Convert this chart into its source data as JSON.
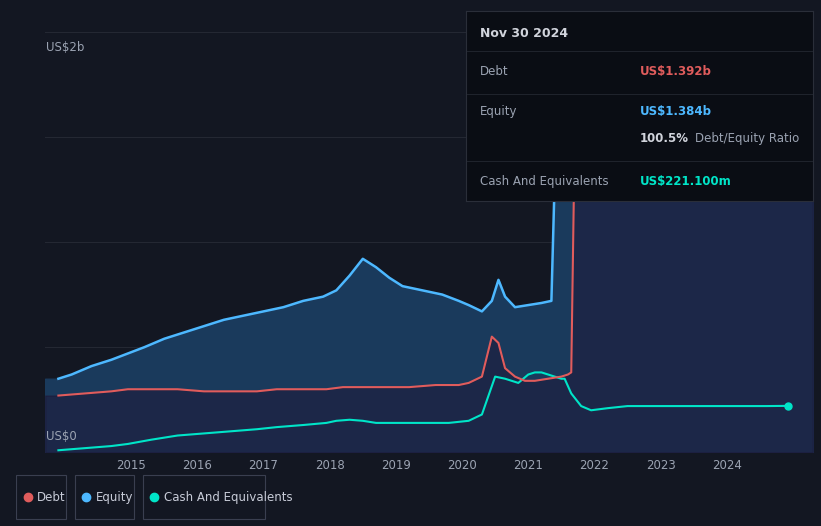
{
  "bg_color": "#131722",
  "plot_bg_color": "#131722",
  "grid_color": "#2a2e39",
  "title_box": {
    "date": "Nov 30 2024",
    "debt_label": "Debt",
    "debt_value": "US$1.392b",
    "equity_label": "Equity",
    "equity_value": "US$1.384b",
    "ratio_value": "100.5%",
    "ratio_label": "Debt/Equity Ratio",
    "cash_label": "Cash And Equivalents",
    "cash_value": "US$221.100m",
    "debt_color": "#e05c5c",
    "equity_color": "#4db8ff",
    "cash_color": "#00e5c8",
    "text_color": "#9ba3b2",
    "title_color": "#d1d4dc",
    "box_bg": "#0a0d14",
    "box_border": "#2a2e39"
  },
  "ylabel_top": "US$2b",
  "ylabel_bottom": "US$0",
  "ylim": [
    0,
    2.0
  ],
  "xlim": [
    2013.7,
    2025.3
  ],
  "debt_color": "#e05c5c",
  "equity_color": "#4db8ff",
  "cash_color": "#00e5c8",
  "equity_fill_color": "#1a3a5c",
  "cash_fill_color": "#0d3530",
  "legend": {
    "debt_label": "Debt",
    "equity_label": "Equity",
    "cash_label": "Cash And Equivalents"
  }
}
